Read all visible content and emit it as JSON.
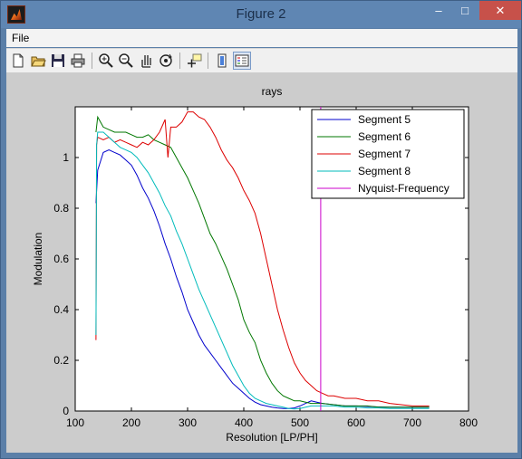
{
  "window": {
    "title": "Figure 2",
    "minimize_glyph": "–",
    "maximize_glyph": "□",
    "close_glyph": "✕"
  },
  "menu": {
    "file": "File"
  },
  "toolbar_icons": [
    "new-file-icon",
    "open-folder-icon",
    "save-icon",
    "print-icon",
    "zoom-in-icon",
    "zoom-out-icon",
    "pan-hand-icon",
    "rotate-3d-icon",
    "data-cursor-icon",
    "colorbar-icon",
    "legend-icon"
  ],
  "colors": {
    "seg5": "#0000cc",
    "seg6": "#007700",
    "seg7": "#dd0000",
    "seg8": "#00bbbb",
    "nyquist": "#cc00cc"
  },
  "chart_data": {
    "type": "line",
    "title": "rays",
    "xlabel": "Resolution [LP/PH]",
    "ylabel": "Modulation",
    "xlim": [
      100,
      800
    ],
    "ylim": [
      0,
      1.2
    ],
    "xticks": [
      100,
      200,
      300,
      400,
      500,
      600,
      700,
      800
    ],
    "yticks": [
      0,
      0.2,
      0.4,
      0.6,
      0.8,
      1
    ],
    "ytick_labels": [
      "0",
      "0.2",
      "0.4",
      "0.6",
      "0.8",
      "1"
    ],
    "legend_position": "top-right",
    "grid": false,
    "series": [
      {
        "name": "Segment 5",
        "color": "#0000cc",
        "x": [
          137,
          140,
          150,
          160,
          170,
          180,
          190,
          200,
          210,
          220,
          230,
          240,
          250,
          260,
          270,
          280,
          290,
          300,
          310,
          320,
          330,
          340,
          350,
          360,
          370,
          380,
          390,
          400,
          410,
          420,
          430,
          440,
          450,
          460,
          470,
          480,
          490,
          500,
          510,
          520,
          530,
          540,
          560,
          580,
          600,
          620,
          640,
          660,
          680,
          700,
          730
        ],
        "y": [
          0.82,
          0.95,
          1.02,
          1.03,
          1.02,
          1.01,
          0.99,
          0.97,
          0.93,
          0.88,
          0.84,
          0.79,
          0.73,
          0.66,
          0.6,
          0.53,
          0.47,
          0.4,
          0.35,
          0.3,
          0.26,
          0.23,
          0.2,
          0.17,
          0.14,
          0.11,
          0.09,
          0.07,
          0.05,
          0.035,
          0.025,
          0.02,
          0.015,
          0.012,
          0.01,
          0.01,
          0.012,
          0.02,
          0.03,
          0.04,
          0.035,
          0.03,
          0.025,
          0.02,
          0.02,
          0.018,
          0.016,
          0.015,
          0.015,
          0.015,
          0.015
        ]
      },
      {
        "name": "Segment 6",
        "color": "#007700",
        "x": [
          137,
          140,
          150,
          160,
          170,
          180,
          190,
          200,
          210,
          220,
          230,
          240,
          250,
          260,
          270,
          280,
          290,
          300,
          310,
          320,
          330,
          340,
          350,
          360,
          370,
          380,
          390,
          400,
          410,
          420,
          430,
          440,
          450,
          460,
          470,
          480,
          490,
          500,
          510,
          520,
          530,
          540,
          560,
          580,
          600,
          620,
          640,
          660,
          680,
          700,
          730
        ],
        "y": [
          1.1,
          1.16,
          1.12,
          1.11,
          1.1,
          1.1,
          1.1,
          1.09,
          1.08,
          1.08,
          1.09,
          1.07,
          1.06,
          1.05,
          1.04,
          1.0,
          0.96,
          0.92,
          0.87,
          0.82,
          0.76,
          0.7,
          0.66,
          0.61,
          0.56,
          0.5,
          0.44,
          0.36,
          0.31,
          0.27,
          0.2,
          0.15,
          0.11,
          0.08,
          0.06,
          0.05,
          0.04,
          0.04,
          0.035,
          0.03,
          0.03,
          0.03,
          0.025,
          0.02,
          0.02,
          0.02,
          0.015,
          0.015,
          0.015,
          0.015,
          0.015
        ]
      },
      {
        "name": "Segment 7",
        "color": "#dd0000",
        "x": [
          137,
          138,
          140,
          150,
          160,
          170,
          180,
          190,
          200,
          210,
          220,
          230,
          240,
          250,
          260,
          265,
          270,
          280,
          290,
          300,
          310,
          320,
          330,
          340,
          350,
          360,
          370,
          380,
          390,
          400,
          410,
          420,
          430,
          440,
          450,
          460,
          470,
          480,
          490,
          500,
          510,
          520,
          530,
          540,
          550,
          560,
          580,
          600,
          620,
          640,
          660,
          680,
          700,
          730
        ],
        "y": [
          0.28,
          1.05,
          1.08,
          1.07,
          1.08,
          1.06,
          1.07,
          1.06,
          1.05,
          1.04,
          1.06,
          1.05,
          1.07,
          1.1,
          1.15,
          1.0,
          1.12,
          1.12,
          1.14,
          1.18,
          1.18,
          1.16,
          1.15,
          1.12,
          1.08,
          1.03,
          0.99,
          0.96,
          0.92,
          0.87,
          0.83,
          0.78,
          0.7,
          0.6,
          0.5,
          0.4,
          0.32,
          0.25,
          0.19,
          0.15,
          0.12,
          0.1,
          0.08,
          0.07,
          0.06,
          0.06,
          0.05,
          0.05,
          0.04,
          0.04,
          0.03,
          0.025,
          0.02,
          0.02
        ]
      },
      {
        "name": "Segment 8",
        "color": "#00bbbb",
        "x": [
          137,
          138,
          140,
          150,
          160,
          170,
          180,
          190,
          200,
          210,
          220,
          230,
          240,
          250,
          260,
          270,
          280,
          290,
          300,
          310,
          320,
          330,
          340,
          350,
          360,
          370,
          380,
          390,
          400,
          410,
          420,
          430,
          440,
          450,
          460,
          470,
          480,
          490,
          500,
          510,
          520,
          530,
          540,
          560,
          580,
          600,
          620,
          640,
          660,
          680,
          700,
          730
        ],
        "y": [
          0.3,
          1.05,
          1.1,
          1.1,
          1.08,
          1.06,
          1.04,
          1.03,
          1.02,
          1.0,
          0.97,
          0.94,
          0.9,
          0.86,
          0.81,
          0.77,
          0.71,
          0.66,
          0.6,
          0.54,
          0.48,
          0.43,
          0.38,
          0.33,
          0.28,
          0.23,
          0.18,
          0.14,
          0.1,
          0.07,
          0.05,
          0.04,
          0.03,
          0.025,
          0.02,
          0.015,
          0.01,
          0.008,
          0.01,
          0.015,
          0.02,
          0.02,
          0.02,
          0.02,
          0.015,
          0.015,
          0.012,
          0.012,
          0.01,
          0.01,
          0.01,
          0.01
        ]
      },
      {
        "name": "Nyquist-Frequency",
        "color": "#cc00cc",
        "x": [
          537,
          537
        ],
        "y": [
          0,
          1.2
        ]
      }
    ]
  }
}
